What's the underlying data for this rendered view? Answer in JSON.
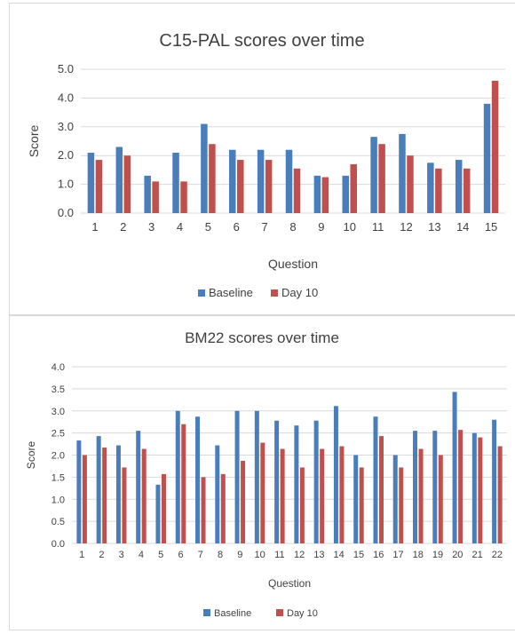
{
  "colors": {
    "baseline": "#4a7ebb",
    "day10": "#c0504d",
    "grid": "#d9d9d9",
    "text": "#404040"
  },
  "chart_data": [
    {
      "type": "bar",
      "title": "C15-PAL scores over time",
      "xlabel": "Question",
      "ylabel": "Score",
      "ylim": [
        0,
        5
      ],
      "yticks": [
        "0.0",
        "1.0",
        "2.0",
        "3.0",
        "4.0",
        "5.0"
      ],
      "grid": true,
      "legend_position": "bottom",
      "categories": [
        "1",
        "2",
        "3",
        "4",
        "5",
        "6",
        "7",
        "8",
        "9",
        "10",
        "11",
        "12",
        "13",
        "14",
        "15"
      ],
      "series": [
        {
          "name": "Baseline",
          "values": [
            2.1,
            2.3,
            1.3,
            2.1,
            3.1,
            2.2,
            2.2,
            2.2,
            1.3,
            1.3,
            2.65,
            2.75,
            1.75,
            1.85,
            3.8
          ]
        },
        {
          "name": "Day 10",
          "values": [
            1.85,
            2.0,
            1.1,
            1.1,
            2.4,
            1.85,
            1.85,
            1.55,
            1.25,
            1.7,
            2.4,
            2.0,
            1.55,
            1.55,
            4.6
          ]
        }
      ]
    },
    {
      "type": "bar",
      "title": "BM22 scores over time",
      "xlabel": "Question",
      "ylabel": "Score",
      "ylim": [
        0,
        4
      ],
      "yticks": [
        "0.0",
        "0.5",
        "1.0",
        "1.5",
        "2.0",
        "2.5",
        "3.0",
        "3.5",
        "4.0"
      ],
      "grid": true,
      "legend_position": "bottom",
      "categories": [
        "1",
        "2",
        "3",
        "4",
        "5",
        "6",
        "7",
        "8",
        "9",
        "10",
        "11",
        "12",
        "13",
        "14",
        "15",
        "16",
        "17",
        "18",
        "19",
        "20",
        "21",
        "22"
      ],
      "series": [
        {
          "name": "Baseline",
          "values": [
            2.33,
            2.43,
            2.22,
            2.55,
            1.33,
            3.0,
            2.87,
            2.22,
            3.0,
            3.0,
            2.78,
            2.67,
            2.78,
            3.11,
            2.0,
            2.87,
            2.0,
            2.55,
            2.55,
            3.43,
            2.5,
            2.8
          ]
        },
        {
          "name": "Day 10",
          "values": [
            2.0,
            2.17,
            1.72,
            2.14,
            1.57,
            2.7,
            1.5,
            1.57,
            1.87,
            2.28,
            2.14,
            1.72,
            2.14,
            2.2,
            1.72,
            2.43,
            1.72,
            2.14,
            2.0,
            2.57,
            2.4,
            2.2
          ]
        }
      ]
    }
  ]
}
